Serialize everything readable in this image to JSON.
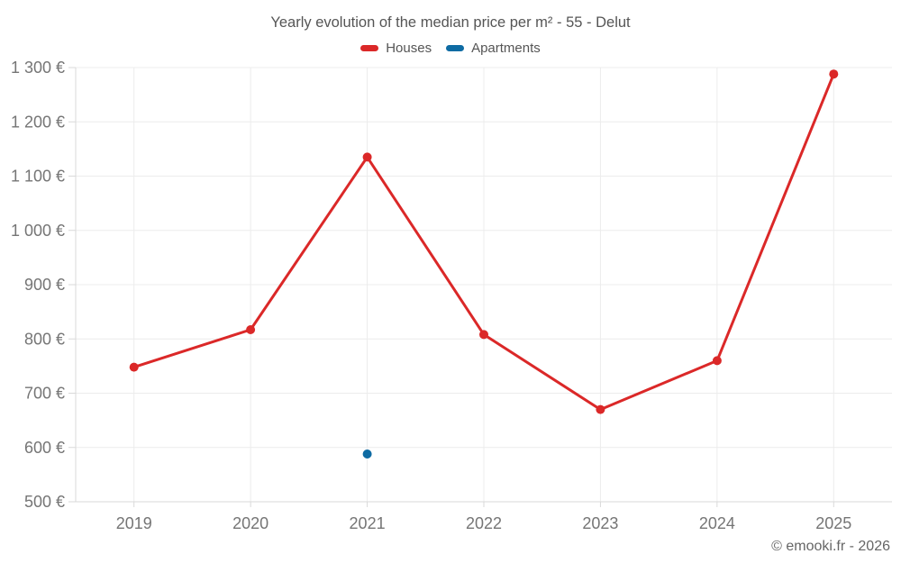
{
  "title": "Yearly evolution of the median price per m² - 55 - Delut",
  "footer": {
    "copyright": "© emooki.fr - 2026"
  },
  "colors": {
    "houses": "#db2828",
    "apartments": "#0e6ba3",
    "grid": "#ececec",
    "axis": "#d9d9d9",
    "tick_text": "#757575"
  },
  "chart_data": {
    "type": "line",
    "title": "Yearly evolution of the median price per m² - 55 - Delut",
    "categories": [
      "2019",
      "2020",
      "2021",
      "2022",
      "2023",
      "2024",
      "2025"
    ],
    "series": [
      {
        "name": "Houses",
        "color": "#db2828",
        "values": [
          748,
          817,
          1135,
          808,
          670,
          760,
          1288
        ]
      },
      {
        "name": "Apartments",
        "color": "#0e6ba3",
        "values": [
          null,
          null,
          588,
          null,
          null,
          null,
          null
        ]
      }
    ],
    "xlabel": "",
    "ylabel": "",
    "ylim": [
      500,
      1300
    ],
    "ytick_step": 100,
    "ytick_suffix": " €",
    "grid": true,
    "legend_position": "top",
    "marker_radius": 5,
    "line_width": 3
  }
}
